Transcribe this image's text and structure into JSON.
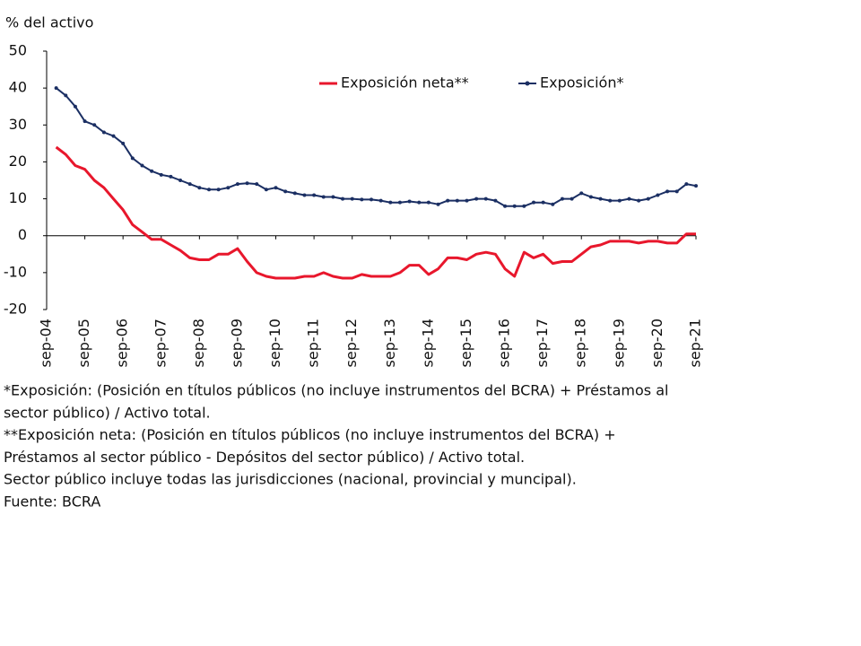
{
  "chart_data": {
    "type": "line",
    "ylabel": "% del activo",
    "x": [
      "2004-12",
      "2005-03",
      "2005-06",
      "2005-09",
      "2005-12",
      "2006-03",
      "2006-06",
      "2006-09",
      "2006-12",
      "2007-03",
      "2007-06",
      "2007-09",
      "2007-12",
      "2008-03",
      "2008-06",
      "2008-09",
      "2008-12",
      "2009-03",
      "2009-06",
      "2009-09",
      "2009-12",
      "2010-03",
      "2010-06",
      "2010-09",
      "2010-12",
      "2011-03",
      "2011-06",
      "2011-09",
      "2011-12",
      "2012-03",
      "2012-06",
      "2012-09",
      "2012-12",
      "2013-03",
      "2013-06",
      "2013-09",
      "2013-12",
      "2014-03",
      "2014-06",
      "2014-09",
      "2014-12",
      "2015-03",
      "2015-06",
      "2015-09",
      "2015-12",
      "2016-03",
      "2016-06",
      "2016-09",
      "2016-12",
      "2017-03",
      "2017-06",
      "2017-09",
      "2017-12",
      "2018-03",
      "2018-06",
      "2018-09",
      "2018-12",
      "2019-03",
      "2019-06",
      "2019-09",
      "2019-12",
      "2020-03",
      "2020-06",
      "2020-09",
      "2020-12",
      "2021-03",
      "2021-06",
      "2021-09"
    ],
    "series": [
      {
        "name": "Exposición neta**",
        "color": "#e8172c",
        "markers": false,
        "values": [
          24,
          22,
          19,
          18,
          15,
          13,
          10,
          7,
          3,
          1,
          -1,
          -1,
          -2.5,
          -4,
          -6,
          -6.5,
          -6.5,
          -5,
          -5,
          -3.5,
          -7,
          -10,
          -11,
          -11.5,
          -11.5,
          -11.5,
          -11,
          -11,
          -10,
          -11,
          -11.5,
          -11.5,
          -10.5,
          -11,
          -11,
          -11,
          -10,
          -8,
          -8,
          -10.5,
          -9,
          -6,
          -6,
          -6.5,
          -5,
          -4.5,
          -5,
          -9,
          -11,
          -4.5,
          -6,
          -5,
          -7.5,
          -7,
          -7,
          -5,
          -3,
          -2.5,
          -1.5,
          -1.5,
          -1.5,
          -2,
          -1.5,
          -1.5,
          -2,
          -2,
          0.5,
          0.5
        ]
      },
      {
        "name": "Exposición*",
        "color": "#1b2f63",
        "markers": true,
        "values": [
          40,
          38,
          35,
          31,
          30,
          28,
          27,
          25,
          21,
          19,
          17.5,
          16.5,
          16,
          15,
          14,
          13,
          12.5,
          12.5,
          13,
          14,
          14.2,
          14,
          12.5,
          13,
          12,
          11.5,
          11,
          11,
          10.5,
          10.5,
          10,
          10,
          9.8,
          9.8,
          9.5,
          9,
          9,
          9.3,
          9,
          9,
          8.5,
          9.5,
          9.5,
          9.5,
          10,
          10,
          9.5,
          8,
          8,
          8,
          9,
          9,
          8.5,
          10,
          10,
          11.5,
          10.5,
          10,
          9.5,
          9.5,
          10,
          9.5,
          10,
          11,
          12,
          12,
          14,
          13.5
        ]
      }
    ],
    "xlim": [
      "2004-09",
      "2021-09"
    ],
    "xticks": [
      {
        "value": "2004-09",
        "label": "sep-04"
      },
      {
        "value": "2005-09",
        "label": "sep-05"
      },
      {
        "value": "2006-09",
        "label": "sep-06"
      },
      {
        "value": "2007-09",
        "label": "sep-07"
      },
      {
        "value": "2008-09",
        "label": "sep-08"
      },
      {
        "value": "2009-09",
        "label": "sep-09"
      },
      {
        "value": "2010-09",
        "label": "sep-10"
      },
      {
        "value": "2011-09",
        "label": "sep-11"
      },
      {
        "value": "2012-09",
        "label": "sep-12"
      },
      {
        "value": "2013-09",
        "label": "sep-13"
      },
      {
        "value": "2014-09",
        "label": "sep-14"
      },
      {
        "value": "2015-09",
        "label": "sep-15"
      },
      {
        "value": "2016-09",
        "label": "sep-16"
      },
      {
        "value": "2017-09",
        "label": "sep-17"
      },
      {
        "value": "2018-09",
        "label": "sep-18"
      },
      {
        "value": "2019-09",
        "label": "sep-19"
      },
      {
        "value": "2020-09",
        "label": "sep-20"
      },
      {
        "value": "2021-09",
        "label": "sep-21"
      }
    ],
    "ylim": [
      -20,
      50
    ],
    "yticks": [
      -20,
      -10,
      0,
      10,
      20,
      30,
      40,
      50
    ],
    "grid": false,
    "legend": "top",
    "notes": [
      "*Exposición: (Posición en títulos públicos (no incluye instrumentos del BCRA) + Préstamos al",
      "sector público) / Activo total.",
      "**Exposición neta: (Posición en títulos públicos (no incluye instrumentos del BCRA) +",
      "Préstamos al sector público - Depósitos del sector público) / Activo total.",
      "Sector público incluye todas las jurisdicciones (nacional, provincial y muncipal).",
      "Fuente: BCRA"
    ]
  }
}
